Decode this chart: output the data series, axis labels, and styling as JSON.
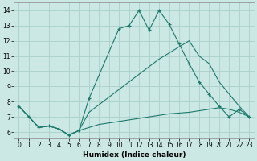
{
  "xlabel": "Humidex (Indice chaleur)",
  "bg_color": "#cce8e4",
  "grid_color": "#aacfcb",
  "line_color": "#1a7a6e",
  "xlim": [
    -0.5,
    23.5
  ],
  "ylim": [
    5.6,
    14.5
  ],
  "xticks": [
    0,
    1,
    2,
    3,
    4,
    5,
    6,
    7,
    8,
    9,
    10,
    11,
    12,
    13,
    14,
    15,
    16,
    17,
    18,
    19,
    20,
    21,
    22,
    23
  ],
  "yticks": [
    6,
    7,
    8,
    9,
    10,
    11,
    12,
    13,
    14
  ],
  "line1_x": [
    0,
    1,
    2,
    3,
    4,
    5,
    6,
    7,
    10,
    11,
    12,
    13,
    14,
    15,
    16,
    17,
    18,
    19,
    20,
    21,
    22,
    23
  ],
  "line1_y": [
    7.7,
    7.0,
    6.3,
    6.4,
    6.2,
    5.8,
    6.1,
    8.2,
    12.8,
    13.0,
    14.0,
    12.7,
    14.0,
    13.1,
    11.8,
    10.5,
    9.3,
    8.5,
    7.7,
    7.0,
    7.5,
    7.0
  ],
  "line2_x": [
    0,
    1,
    2,
    3,
    4,
    5,
    6,
    7,
    8,
    9,
    10,
    11,
    12,
    13,
    14,
    15,
    16,
    17,
    18,
    19,
    20,
    21,
    22,
    23
  ],
  "line2_y": [
    7.7,
    7.0,
    6.3,
    6.4,
    6.2,
    5.8,
    6.1,
    7.3,
    7.8,
    8.3,
    8.8,
    9.3,
    9.8,
    10.3,
    10.8,
    11.2,
    11.6,
    12.0,
    11.0,
    10.5,
    9.3,
    8.5,
    7.7,
    7.0
  ],
  "line3_x": [
    0,
    1,
    2,
    3,
    4,
    5,
    6,
    7,
    8,
    9,
    10,
    11,
    12,
    13,
    14,
    15,
    16,
    17,
    18,
    19,
    20,
    21,
    22,
    23
  ],
  "line3_y": [
    7.7,
    7.0,
    6.3,
    6.4,
    6.2,
    5.8,
    6.1,
    6.3,
    6.5,
    6.6,
    6.7,
    6.8,
    6.9,
    7.0,
    7.1,
    7.2,
    7.25,
    7.3,
    7.4,
    7.5,
    7.6,
    7.5,
    7.3,
    7.0
  ]
}
